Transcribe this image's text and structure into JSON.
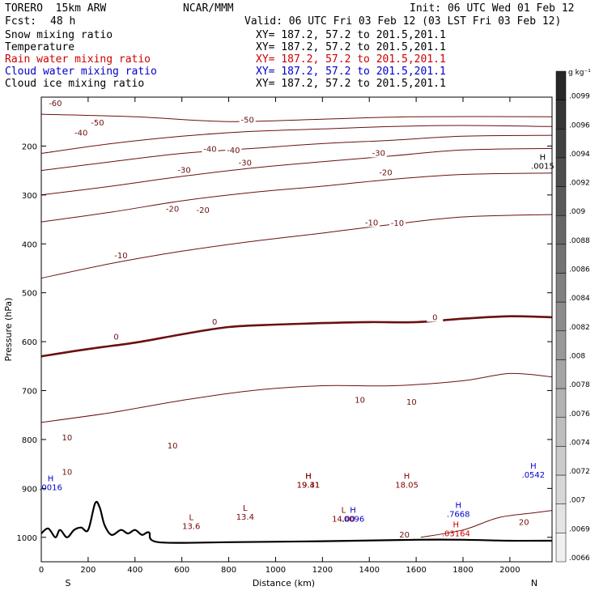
{
  "header": {
    "model": "TORERO  15km ARW",
    "org": "NCAR/MMM",
    "init": "Init: 06 UTC Wed 01 Feb 12",
    "fcst_label": "Fcst:",
    "fcst_value": "48 h",
    "valid": "Valid: 06 UTC Fri 03 Feb 12 (03 LST Fri 03 Feb 12)"
  },
  "fields": [
    {
      "name": "Snow mixing ratio",
      "range": "XY= 187.2, 57.2 to 201.5,201.1",
      "color": "#000000"
    },
    {
      "name": "Temperature",
      "range": "XY= 187.2, 57.2 to 201.5,201.1",
      "color": "#000000"
    },
    {
      "name": "Rain water mixing ratio",
      "range": "XY= 187.2, 57.2 to 201.5,201.1",
      "color": "#cc0000"
    },
    {
      "name": "Cloud water mixing ratio",
      "range": "XY= 187.2, 57.2 to 201.5,201.1",
      "color": "#0000cc"
    },
    {
      "name": "Cloud ice mixing ratio",
      "range": "XY= 187.2, 57.2 to 201.5,201.1",
      "color": "#000000"
    }
  ],
  "chart_data": {
    "type": "cross-section",
    "xlabel": "Distance (km)",
    "ylabel": "Pressure (hPa)",
    "xlim": [
      0,
      2180
    ],
    "ylim": [
      1050,
      100
    ],
    "x_ticks": [
      0,
      200,
      400,
      600,
      800,
      1000,
      1200,
      1400,
      1600,
      1800,
      2000
    ],
    "y_ticks": [
      200,
      300,
      400,
      500,
      600,
      700,
      800,
      900,
      1000
    ],
    "x_end_labels": {
      "left": "S",
      "right": "N"
    },
    "temperature_contours": [
      {
        "level": -60,
        "points": [
          [
            0,
            135
          ],
          [
            400,
            140
          ],
          [
            800,
            150
          ],
          [
            1200,
            145
          ],
          [
            1600,
            140
          ],
          [
            2180,
            140
          ]
        ]
      },
      {
        "level": -50,
        "points": [
          [
            0,
            215
          ],
          [
            300,
            195
          ],
          [
            600,
            180
          ],
          [
            900,
            170
          ],
          [
            1200,
            165
          ],
          [
            1500,
            160
          ],
          [
            1800,
            158
          ],
          [
            2180,
            160
          ]
        ]
      },
      {
        "level": -40,
        "points": [
          [
            0,
            250
          ],
          [
            300,
            232
          ],
          [
            600,
            215
          ],
          [
            900,
            205
          ],
          [
            1200,
            195
          ],
          [
            1500,
            188
          ],
          [
            1800,
            180
          ],
          [
            2180,
            178
          ]
        ]
      },
      {
        "level": -30,
        "points": [
          [
            0,
            300
          ],
          [
            300,
            282
          ],
          [
            600,
            262
          ],
          [
            900,
            245
          ],
          [
            1200,
            232
          ],
          [
            1500,
            220
          ],
          [
            1800,
            208
          ],
          [
            2180,
            205
          ]
        ]
      },
      {
        "level": -20,
        "points": [
          [
            0,
            355
          ],
          [
            300,
            335
          ],
          [
            600,
            312
          ],
          [
            900,
            295
          ],
          [
            1200,
            282
          ],
          [
            1500,
            268
          ],
          [
            1800,
            258
          ],
          [
            2180,
            255
          ]
        ]
      },
      {
        "level": -10,
        "points": [
          [
            0,
            470
          ],
          [
            300,
            440
          ],
          [
            600,
            415
          ],
          [
            900,
            395
          ],
          [
            1200,
            378
          ],
          [
            1500,
            360
          ],
          [
            1800,
            345
          ],
          [
            2180,
            340
          ]
        ]
      },
      {
        "level": 0,
        "points": [
          [
            0,
            630
          ],
          [
            200,
            615
          ],
          [
            400,
            602
          ],
          [
            600,
            585
          ],
          [
            800,
            570
          ],
          [
            1000,
            565
          ],
          [
            1200,
            562
          ],
          [
            1400,
            560
          ],
          [
            1600,
            560
          ],
          [
            1800,
            553
          ],
          [
            2000,
            548
          ],
          [
            2180,
            550
          ]
        ]
      },
      {
        "level": 10,
        "points": [
          [
            0,
            765
          ],
          [
            300,
            745
          ],
          [
            600,
            720
          ],
          [
            900,
            700
          ],
          [
            1200,
            690
          ],
          [
            1500,
            690
          ],
          [
            1800,
            680
          ],
          [
            2000,
            665
          ],
          [
            2180,
            672
          ]
        ]
      },
      {
        "level": 20,
        "points": [
          [
            1620,
            1000
          ],
          [
            1800,
            985
          ],
          [
            1950,
            960
          ],
          [
            2100,
            950
          ],
          [
            2180,
            945
          ]
        ]
      }
    ],
    "contour_labels": [
      {
        "text": "-60",
        "x": 60,
        "y": 118
      },
      {
        "text": "-50",
        "x": 240,
        "y": 158
      },
      {
        "text": "-50",
        "x": 880,
        "y": 152
      },
      {
        "text": "-40",
        "x": 170,
        "y": 179
      },
      {
        "text": "-40",
        "x": 820,
        "y": 214
      },
      {
        "text": "-40",
        "x": 720,
        "y": 212
      },
      {
        "text": "-30",
        "x": 870,
        "y": 240
      },
      {
        "text": "-30",
        "x": 1440,
        "y": 220
      },
      {
        "text": "-30",
        "x": 610,
        "y": 255
      },
      {
        "text": "-20",
        "x": 560,
        "y": 334
      },
      {
        "text": "-20",
        "x": 690,
        "y": 337
      },
      {
        "text": "-20",
        "x": 1470,
        "y": 260
      },
      {
        "text": "-10",
        "x": 1410,
        "y": 362
      },
      {
        "text": "-10",
        "x": 1520,
        "y": 363
      },
      {
        "text": "-10",
        "x": 340,
        "y": 429
      },
      {
        "text": "0",
        "x": 740,
        "y": 565
      },
      {
        "text": "0",
        "x": 320,
        "y": 596
      },
      {
        "text": "0",
        "x": 1680,
        "y": 556
      },
      {
        "text": "10",
        "x": 1360,
        "y": 725
      },
      {
        "text": "10",
        "x": 1580,
        "y": 729
      },
      {
        "text": "10",
        "x": 110,
        "y": 802
      },
      {
        "text": "10",
        "x": 560,
        "y": 818
      },
      {
        "text": "10",
        "x": 110,
        "y": 872
      },
      {
        "text": "20",
        "x": 1550,
        "y": 1000
      },
      {
        "text": "20",
        "x": 2060,
        "y": 975
      }
    ],
    "extrema": [
      {
        "mark": "H",
        "value": "19.41",
        "x": 1140,
        "y": 880,
        "color": "#800000"
      },
      {
        "mark": "H",
        "value": "19.31",
        "x": 1140,
        "y": 880,
        "color": "#800000"
      },
      {
        "mark": "H",
        "value": "18.05",
        "x": 1560,
        "y": 880,
        "color": "#800000"
      },
      {
        "mark": "L",
        "value": "13.4",
        "x": 870,
        "y": 946,
        "color": "#800000"
      },
      {
        "mark": "L",
        "value": "13.6",
        "x": 640,
        "y": 965,
        "color": "#800000"
      },
      {
        "mark": "L",
        "value": "14.00",
        "x": 1290,
        "y": 950,
        "color": "#800000"
      },
      {
        "mark": "H",
        "value": ".0016",
        "x": 40,
        "y": 885,
        "color": "#0000cc"
      },
      {
        "mark": "H",
        "value": ".0096",
        "x": 1330,
        "y": 950,
        "color": "#0000cc"
      },
      {
        "mark": "H",
        "value": ".7668",
        "x": 1780,
        "y": 940,
        "color": "#0000cc"
      },
      {
        "mark": "H",
        "value": ".03164",
        "x": 1770,
        "y": 980,
        "color": "#cc0000"
      },
      {
        "mark": "H",
        "value": ".0542",
        "x": 2100,
        "y": 860,
        "color": "#0000cc"
      },
      {
        "mark": "H",
        "value": ".0015",
        "x": 2140,
        "y": 228,
        "color": "#000000"
      }
    ],
    "terrain": [
      [
        0,
        992
      ],
      [
        30,
        982
      ],
      [
        60,
        1000
      ],
      [
        80,
        985
      ],
      [
        110,
        1000
      ],
      [
        140,
        985
      ],
      [
        170,
        980
      ],
      [
        200,
        985
      ],
      [
        230,
        930
      ],
      [
        250,
        940
      ],
      [
        270,
        975
      ],
      [
        300,
        995
      ],
      [
        340,
        985
      ],
      [
        370,
        992
      ],
      [
        400,
        985
      ],
      [
        430,
        995
      ],
      [
        460,
        990
      ],
      [
        500,
        1010
      ],
      [
        800,
        1010
      ],
      [
        1200,
        1008
      ],
      [
        1600,
        1005
      ],
      [
        1800,
        1005
      ],
      [
        2000,
        1007
      ],
      [
        2180,
        1007
      ]
    ],
    "colorbar": {
      "unit": "g kg⁻¹",
      "labels": [
        ".0099",
        ".0096",
        ".0094",
        ".0092",
        ".009",
        ".0088",
        ".0086",
        ".0084",
        ".0082",
        ".008",
        ".0078",
        ".0076",
        ".0074",
        ".0072",
        ".007",
        ".0069",
        ".0066"
      ]
    }
  }
}
